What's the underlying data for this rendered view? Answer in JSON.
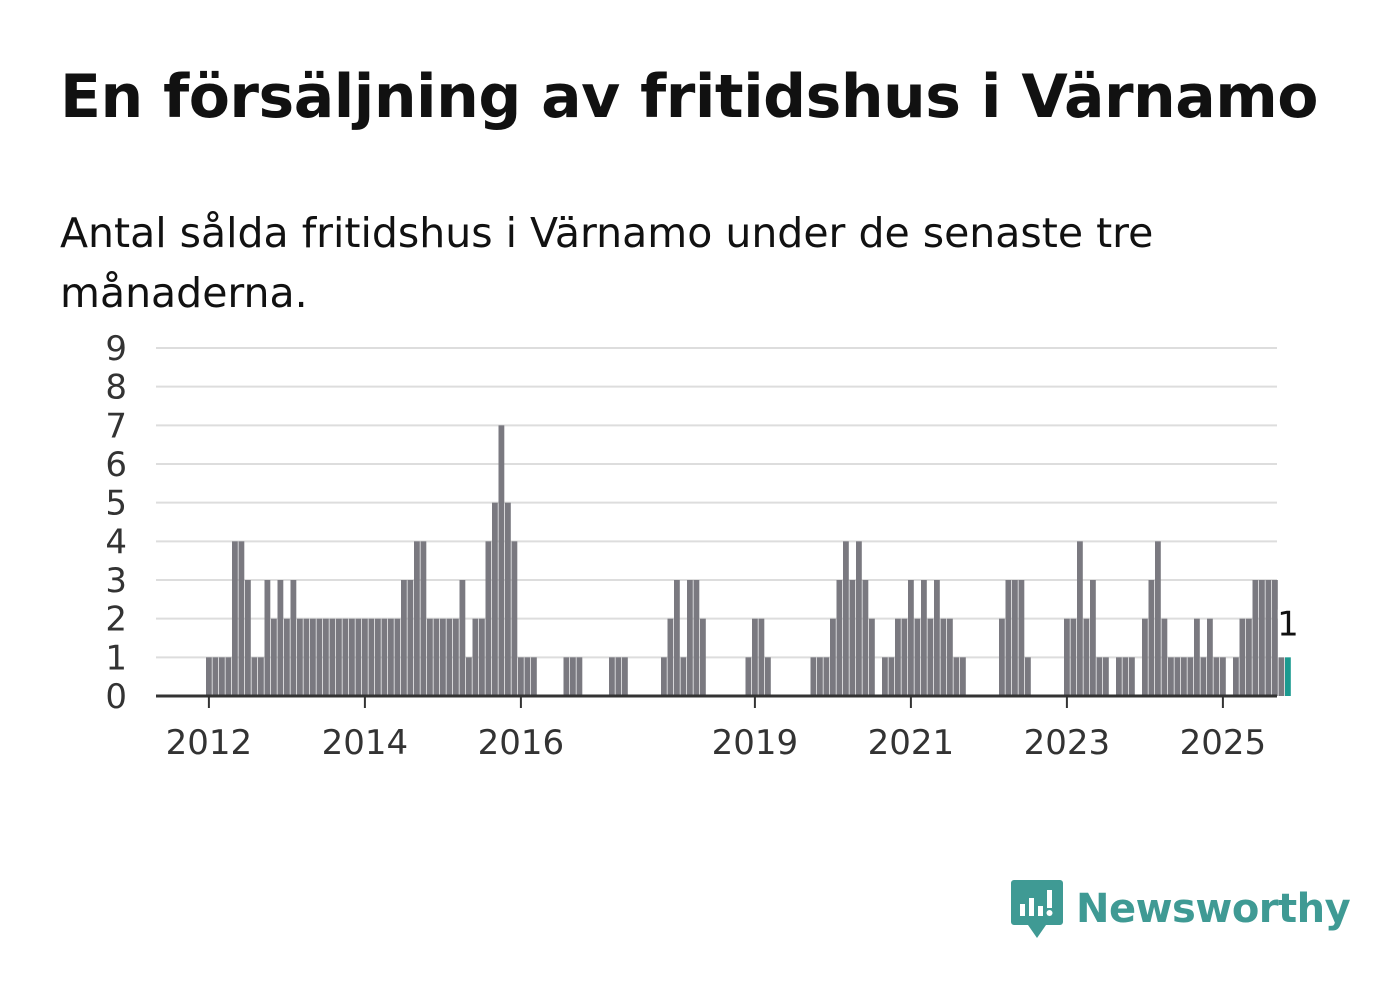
{
  "title": "En försäljning av fritidshus i Värnamo",
  "subtitle": "Antal sålda fritidshus i Värnamo under de senaste tre månaderna.",
  "brand": {
    "name": "Newsworthy",
    "icon": "newsworthy-logo-icon"
  },
  "colors": {
    "bar": "#7a7980",
    "highlight": "#1b9a90",
    "grid": "#dddddd",
    "axis": "#333333",
    "brand": "#3f9a94"
  },
  "chart_data": {
    "type": "bar",
    "title": "En försäljning av fritidshus i Värnamo",
    "subtitle": "Antal sålda fritidshus i Värnamo under de senaste tre månaderna.",
    "x_start": "2011-12",
    "frequency": "monthly",
    "ylim": [
      0,
      9
    ],
    "yticks": [
      0,
      1,
      2,
      3,
      4,
      5,
      6,
      7,
      8,
      9
    ],
    "xticks": [
      {
        "label": "2012",
        "date": "2012-01"
      },
      {
        "label": "2014",
        "date": "2014-01"
      },
      {
        "label": "2016",
        "date": "2016-01"
      },
      {
        "label": "2019",
        "date": "2019-01"
      },
      {
        "label": "2021",
        "date": "2021-01"
      },
      {
        "label": "2023",
        "date": "2023-01"
      },
      {
        "label": "2025",
        "date": "2025-01"
      }
    ],
    "values": [
      0,
      1,
      1,
      1,
      1,
      4,
      4,
      3,
      1,
      1,
      3,
      2,
      3,
      2,
      3,
      2,
      2,
      2,
      2,
      2,
      2,
      2,
      2,
      2,
      2,
      2,
      2,
      2,
      2,
      2,
      2,
      3,
      3,
      4,
      4,
      2,
      2,
      2,
      2,
      2,
      3,
      1,
      2,
      2,
      4,
      5,
      7,
      5,
      4,
      1,
      1,
      1,
      0,
      0,
      0,
      0,
      1,
      1,
      1,
      0,
      0,
      0,
      0,
      1,
      1,
      1,
      0,
      0,
      0,
      0,
      0,
      1,
      2,
      3,
      1,
      3,
      3,
      2,
      0,
      0,
      0,
      0,
      0,
      0,
      1,
      2,
      2,
      1,
      0,
      0,
      0,
      0,
      0,
      0,
      1,
      1,
      1,
      2,
      3,
      4,
      3,
      4,
      3,
      2,
      0,
      1,
      1,
      2,
      2,
      3,
      2,
      3,
      2,
      3,
      2,
      2,
      1,
      1,
      0,
      0,
      0,
      0,
      0,
      2,
      3,
      3,
      3,
      1,
      0,
      0,
      0,
      0,
      0,
      2,
      2,
      4,
      2,
      3,
      1,
      1,
      0,
      1,
      1,
      1,
      0,
      2,
      3,
      4,
      2,
      1,
      1,
      1,
      1,
      2,
      1,
      2,
      1,
      1,
      0,
      1,
      2,
      2,
      3,
      3,
      3,
      3,
      1,
      1
    ],
    "highlight_last": true,
    "last_value_label": "1",
    "grid": true,
    "legend": "none"
  }
}
